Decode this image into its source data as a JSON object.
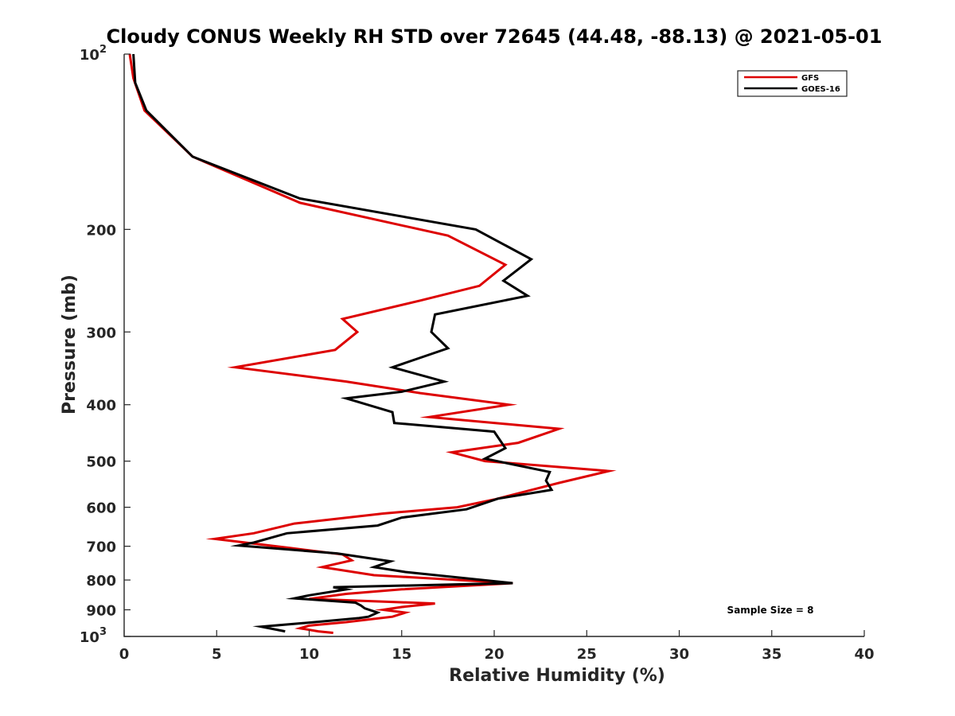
{
  "chart_data": {
    "type": "line",
    "title": "Cloudy CONUS Weekly RH STD over 72645 (44.48, -88.13) @ 2021-05-01",
    "xlabel": "Relative Humidity (%)",
    "ylabel": "Pressure (mb)",
    "xlim": [
      0,
      40
    ],
    "ylim": [
      100,
      1000
    ],
    "y_scale": "log",
    "y_reversed": true,
    "x_ticks": [
      0,
      5,
      10,
      15,
      20,
      25,
      30,
      35,
      40
    ],
    "y_ticks": [
      {
        "value": 100,
        "label": "10",
        "sup": "2"
      },
      {
        "value": 200,
        "label": "200"
      },
      {
        "value": 300,
        "label": "300"
      },
      {
        "value": 400,
        "label": "400"
      },
      {
        "value": 500,
        "label": "500"
      },
      {
        "value": 600,
        "label": "600"
      },
      {
        "value": 700,
        "label": "700"
      },
      {
        "value": 800,
        "label": "800"
      },
      {
        "value": 900,
        "label": "900"
      },
      {
        "value": 1000,
        "label": "10",
        "sup": "3"
      }
    ],
    "grid": false,
    "legend_position": "top-right",
    "annotation": "Sample Size = 8",
    "series": [
      {
        "name": "GFS",
        "color": "#dd0000",
        "points": [
          [
            0.3,
            100
          ],
          [
            0.5,
            110
          ],
          [
            1.1,
            125
          ],
          [
            3.7,
            150
          ],
          [
            9.5,
            180
          ],
          [
            17.5,
            205
          ],
          [
            20.6,
            230
          ],
          [
            19.2,
            250
          ],
          [
            16.0,
            265
          ],
          [
            11.8,
            285
          ],
          [
            12.6,
            300
          ],
          [
            11.4,
            322
          ],
          [
            6.0,
            345
          ],
          [
            12.0,
            365
          ],
          [
            16.0,
            382
          ],
          [
            20.8,
            400
          ],
          [
            16.5,
            420
          ],
          [
            23.5,
            440
          ],
          [
            21.3,
            465
          ],
          [
            17.7,
            483
          ],
          [
            19.5,
            500
          ],
          [
            26.2,
            520
          ],
          [
            23.5,
            545
          ],
          [
            23.0,
            550
          ],
          [
            20.0,
            582
          ],
          [
            18.0,
            600
          ],
          [
            14.0,
            615
          ],
          [
            9.2,
            640
          ],
          [
            7.0,
            665
          ],
          [
            4.9,
            680
          ],
          [
            9.0,
            705
          ],
          [
            11.8,
            723
          ],
          [
            12.3,
            740
          ],
          [
            10.7,
            760
          ],
          [
            13.5,
            785
          ],
          [
            21.0,
            810
          ],
          [
            15.0,
            830
          ],
          [
            12.0,
            845
          ],
          [
            10.0,
            862
          ],
          [
            16.8,
            878
          ],
          [
            15.0,
            890
          ],
          [
            14.0,
            900
          ],
          [
            15.2,
            910
          ],
          [
            14.5,
            925
          ],
          [
            12.0,
            945
          ],
          [
            10.0,
            958
          ],
          [
            9.5,
            968
          ],
          [
            10.5,
            980
          ],
          [
            11.3,
            986
          ]
        ]
      },
      {
        "name": "GOES-16",
        "color": "#000000",
        "points": [
          [
            0.5,
            100
          ],
          [
            0.6,
            112
          ],
          [
            1.2,
            125
          ],
          [
            3.7,
            150
          ],
          [
            9.5,
            177
          ],
          [
            19.0,
            200
          ],
          [
            22.0,
            225
          ],
          [
            20.5,
            245
          ],
          [
            21.8,
            260
          ],
          [
            16.8,
            280
          ],
          [
            16.6,
            300
          ],
          [
            17.5,
            320
          ],
          [
            14.5,
            345
          ],
          [
            17.3,
            365
          ],
          [
            15.0,
            380
          ],
          [
            12.0,
            390
          ],
          [
            14.5,
            412
          ],
          [
            14.6,
            430
          ],
          [
            20.0,
            445
          ],
          [
            20.6,
            475
          ],
          [
            19.5,
            495
          ],
          [
            23.0,
            522
          ],
          [
            22.8,
            540
          ],
          [
            23.1,
            560
          ],
          [
            20.2,
            580
          ],
          [
            18.5,
            605
          ],
          [
            15.0,
            625
          ],
          [
            13.7,
            645
          ],
          [
            8.8,
            665
          ],
          [
            7.0,
            690
          ],
          [
            6.2,
            698
          ],
          [
            11.5,
            720
          ],
          [
            14.4,
            743
          ],
          [
            13.5,
            760
          ],
          [
            15.2,
            775
          ],
          [
            21.0,
            810
          ],
          [
            11.3,
            823
          ],
          [
            12.0,
            830
          ],
          [
            10.0,
            850
          ],
          [
            9.2,
            860
          ],
          [
            12.5,
            875
          ],
          [
            12.8,
            885
          ],
          [
            13.0,
            895
          ],
          [
            13.7,
            910
          ],
          [
            13.2,
            925
          ],
          [
            12.7,
            930
          ],
          [
            10.3,
            945
          ],
          [
            7.4,
            962
          ],
          [
            8.7,
            980
          ]
        ]
      }
    ]
  }
}
